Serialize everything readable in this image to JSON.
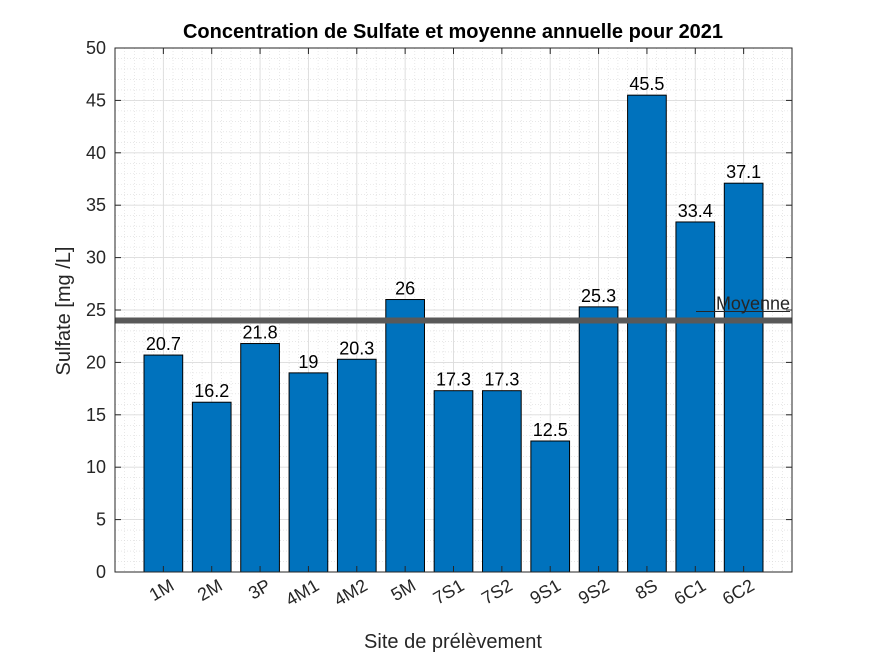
{
  "chart_data": {
    "type": "bar",
    "title": "Concentration de Sulfate et moyenne annuelle pour 2021",
    "xlabel": "Site de prélèvement",
    "ylabel": "Sulfate [mg /L]",
    "categories": [
      "1M",
      "2M",
      "3P",
      "4M1",
      "4M2",
      "5M",
      "7S1",
      "7S2",
      "9S1",
      "9S2",
      "8S",
      "6C1",
      "6C2"
    ],
    "values": [
      20.7,
      16.2,
      21.8,
      19,
      20.3,
      26,
      17.3,
      17.3,
      12.5,
      25.3,
      45.5,
      33.4,
      37.1
    ],
    "data_labels": [
      "20.7",
      "16.2",
      "21.8",
      "19",
      "20.3",
      "26",
      "17.3",
      "17.3",
      "12.5",
      "25.3",
      "45.5",
      "33.4",
      "37.1"
    ],
    "ylim": [
      0,
      50
    ],
    "yticks": [
      0,
      5,
      10,
      15,
      20,
      25,
      30,
      35,
      40,
      45,
      50
    ],
    "grid": true,
    "minor_grid": true,
    "reference_line": {
      "label": "Moyenne",
      "value": 24
    },
    "colors": {
      "bar": "#0072BD",
      "bar_edge": "#000000",
      "reference_line": "#595959"
    }
  }
}
